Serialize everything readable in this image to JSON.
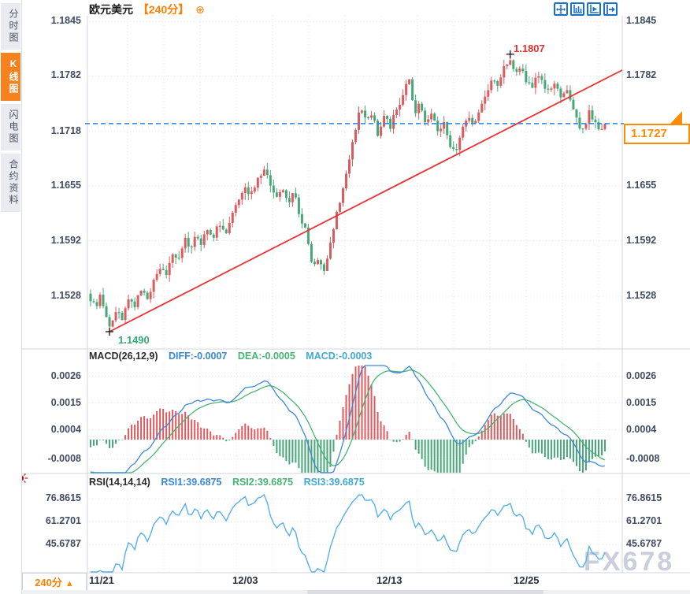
{
  "sidebar": {
    "tabs": [
      {
        "label": "分时图",
        "active": false
      },
      {
        "label": "K线图",
        "active": true
      },
      {
        "label": "闪电图",
        "active": false
      },
      {
        "label": "合约资料",
        "active": false
      }
    ]
  },
  "header": {
    "symbol": "欧元美元",
    "period": "【240分】",
    "add_icon": "⊕"
  },
  "footer": {
    "period_label": "240分",
    "period_arrow": "▲",
    "watermark": "FX678"
  },
  "chart_data": {
    "type": "candlestick",
    "title": "欧元美元 240分 K线图",
    "x_labels": [
      "11/21",
      "12/03",
      "12/13",
      "12/25"
    ],
    "price_axis_ticks": [
      {
        "label": "1.1845",
        "value": 1.1845
      },
      {
        "label": "1.1782",
        "value": 1.1782
      },
      {
        "label": "1.1718",
        "value": 1.1718
      },
      {
        "label": "1.1655",
        "value": 1.1655
      },
      {
        "label": "1.1592",
        "value": 1.1592
      },
      {
        "label": "1.1528",
        "value": 1.1528
      }
    ],
    "candle_count": 164,
    "close_path_anchors_t_price": [
      [
        0.0,
        1.1525
      ],
      [
        0.011,
        1.1512
      ],
      [
        0.02,
        1.1532
      ],
      [
        0.029,
        1.1505
      ],
      [
        0.038,
        1.149
      ],
      [
        0.051,
        1.1512
      ],
      [
        0.061,
        1.15
      ],
      [
        0.074,
        1.1527
      ],
      [
        0.084,
        1.1515
      ],
      [
        0.1,
        1.1537
      ],
      [
        0.112,
        1.1525
      ],
      [
        0.124,
        1.1547
      ],
      [
        0.136,
        1.1562
      ],
      [
        0.147,
        1.155
      ],
      [
        0.158,
        1.158
      ],
      [
        0.17,
        1.1566
      ],
      [
        0.182,
        1.1596
      ],
      [
        0.193,
        1.158
      ],
      [
        0.204,
        1.1602
      ],
      [
        0.214,
        1.1588
      ],
      [
        0.227,
        1.1607
      ],
      [
        0.237,
        1.1592
      ],
      [
        0.25,
        1.1614
      ],
      [
        0.263,
        1.16
      ],
      [
        0.276,
        1.1627
      ],
      [
        0.288,
        1.1642
      ],
      [
        0.299,
        1.1656
      ],
      [
        0.311,
        1.1645
      ],
      [
        0.325,
        1.1662
      ],
      [
        0.337,
        1.1676
      ],
      [
        0.349,
        1.1655
      ],
      [
        0.36,
        1.1643
      ],
      [
        0.372,
        1.1652
      ],
      [
        0.384,
        1.1633
      ],
      [
        0.395,
        1.165
      ],
      [
        0.407,
        1.162
      ],
      [
        0.42,
        1.16
      ],
      [
        0.432,
        1.156
      ],
      [
        0.443,
        1.1572
      ],
      [
        0.453,
        1.1553
      ],
      [
        0.466,
        1.1592
      ],
      [
        0.478,
        1.1622
      ],
      [
        0.49,
        1.1648
      ],
      [
        0.502,
        1.1682
      ],
      [
        0.515,
        1.1722
      ],
      [
        0.525,
        1.175
      ],
      [
        0.536,
        1.1726
      ],
      [
        0.547,
        1.1741
      ],
      [
        0.559,
        1.1713
      ],
      [
        0.571,
        1.1738
      ],
      [
        0.582,
        1.1721
      ],
      [
        0.594,
        1.1743
      ],
      [
        0.606,
        1.1756
      ],
      [
        0.619,
        1.1784
      ],
      [
        0.629,
        1.1736
      ],
      [
        0.64,
        1.1751
      ],
      [
        0.652,
        1.1723
      ],
      [
        0.665,
        1.1739
      ],
      [
        0.675,
        1.1719
      ],
      [
        0.688,
        1.1731
      ],
      [
        0.698,
        1.1701
      ],
      [
        0.709,
        1.1693
      ],
      [
        0.721,
        1.1716
      ],
      [
        0.733,
        1.1738
      ],
      [
        0.744,
        1.1726
      ],
      [
        0.756,
        1.1743
      ],
      [
        0.769,
        1.1761
      ],
      [
        0.781,
        1.1779
      ],
      [
        0.792,
        1.1769
      ],
      [
        0.804,
        1.1791
      ],
      [
        0.816,
        1.1803
      ],
      [
        0.825,
        1.1786
      ],
      [
        0.836,
        1.1794
      ],
      [
        0.847,
        1.1776
      ],
      [
        0.858,
        1.1766
      ],
      [
        0.868,
        1.1781
      ],
      [
        0.881,
        1.1773
      ],
      [
        0.891,
        1.1761
      ],
      [
        0.902,
        1.1771
      ],
      [
        0.914,
        1.1759
      ],
      [
        0.925,
        1.1769
      ],
      [
        0.937,
        1.1746
      ],
      [
        0.948,
        1.1726
      ],
      [
        0.959,
        1.1719
      ],
      [
        0.969,
        1.1741
      ],
      [
        0.98,
        1.1731
      ],
      [
        0.991,
        1.1716
      ],
      [
        1.0,
        1.1727
      ]
    ],
    "high_annotation": {
      "label": "1.1807",
      "value": 1.1807
    },
    "low_annotation": {
      "label": "1.1490",
      "value": 1.149
    },
    "current_price": {
      "label": "1.1727",
      "value": 1.1727
    },
    "trendline": {
      "from_price": 1.149,
      "to_price": 1.1785
    },
    "macd": {
      "title": "MACD(26,12,9)",
      "diff_label": "DIFF:-0.0007",
      "dea_label": "DEA:-0.0005",
      "macd_label": "MACD:-0.0003",
      "axis_ticks": [
        {
          "label": "0.0026",
          "value": 0.0026
        },
        {
          "label": "0.0015",
          "value": 0.0015
        },
        {
          "label": "0.0004",
          "value": 0.0004
        },
        {
          "label": "-0.0008",
          "value": -0.0008
        }
      ]
    },
    "rsi": {
      "title": "RSI(14,14,14)",
      "rsi1_label": "RSI1:39.6875",
      "rsi2_label": "RSI2:39.6875",
      "rsi3_label": "RSI3:39.6875",
      "axis_ticks": [
        {
          "label": "76.8615",
          "value": 76.8615
        },
        {
          "label": "61.2701",
          "value": 61.2701
        },
        {
          "label": "45.6787",
          "value": 45.6787
        }
      ]
    },
    "colors": {
      "up": "#dd5a5e",
      "down": "#47a877",
      "trend": "#ee3030",
      "current_line": "#2585e4",
      "accent": "#ff8b00",
      "diff": "#3b87d9",
      "dea": "#45b471",
      "rsi_line": "#56b0e8",
      "grid": "#dce0e8",
      "border": "#d2d6dc"
    }
  }
}
